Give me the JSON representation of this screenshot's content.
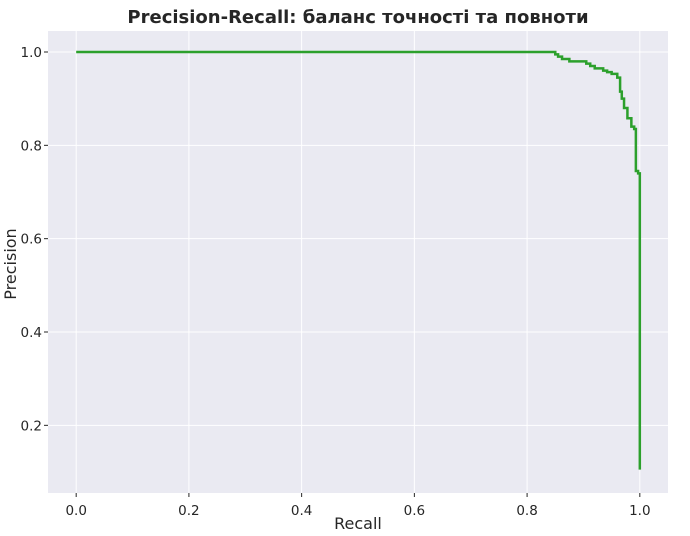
{
  "chart_data": {
    "type": "line",
    "title": "Precision-Recall: баланс точності та повноти",
    "xlabel": "Recall",
    "ylabel": "Precision",
    "xlim": [
      -0.05,
      1.05
    ],
    "ylim": [
      0.055,
      1.045
    ],
    "grid": true,
    "legend": "none",
    "xticks": [
      0.0,
      0.2,
      0.4,
      0.6,
      0.8,
      1.0
    ],
    "xtick_labels": [
      "0.0",
      "0.2",
      "0.4",
      "0.6",
      "0.8",
      "1.0"
    ],
    "yticks": [
      0.2,
      0.4,
      0.6,
      0.8,
      1.0
    ],
    "ytick_labels": [
      "0.2",
      "0.4",
      "0.6",
      "0.8",
      "1.0"
    ],
    "series": [
      {
        "color": "#2ca02c",
        "x": [
          0.0,
          0.85,
          0.85,
          0.855,
          0.855,
          0.862,
          0.862,
          0.875,
          0.875,
          0.905,
          0.905,
          0.912,
          0.912,
          0.92,
          0.92,
          0.935,
          0.935,
          0.942,
          0.942,
          0.95,
          0.95,
          0.96,
          0.96,
          0.965,
          0.965,
          0.968,
          0.968,
          0.972,
          0.972,
          0.978,
          0.978,
          0.985,
          0.985,
          0.99,
          0.99,
          0.993,
          0.993,
          0.997,
          0.997,
          1.0,
          1.0
        ],
        "y": [
          1.0,
          1.0,
          0.995,
          0.995,
          0.99,
          0.99,
          0.985,
          0.985,
          0.98,
          0.98,
          0.975,
          0.975,
          0.97,
          0.97,
          0.965,
          0.965,
          0.96,
          0.96,
          0.957,
          0.957,
          0.953,
          0.953,
          0.945,
          0.945,
          0.915,
          0.915,
          0.9,
          0.9,
          0.88,
          0.88,
          0.858,
          0.858,
          0.84,
          0.84,
          0.835,
          0.835,
          0.745,
          0.745,
          0.74,
          0.74,
          0.105
        ]
      }
    ]
  }
}
